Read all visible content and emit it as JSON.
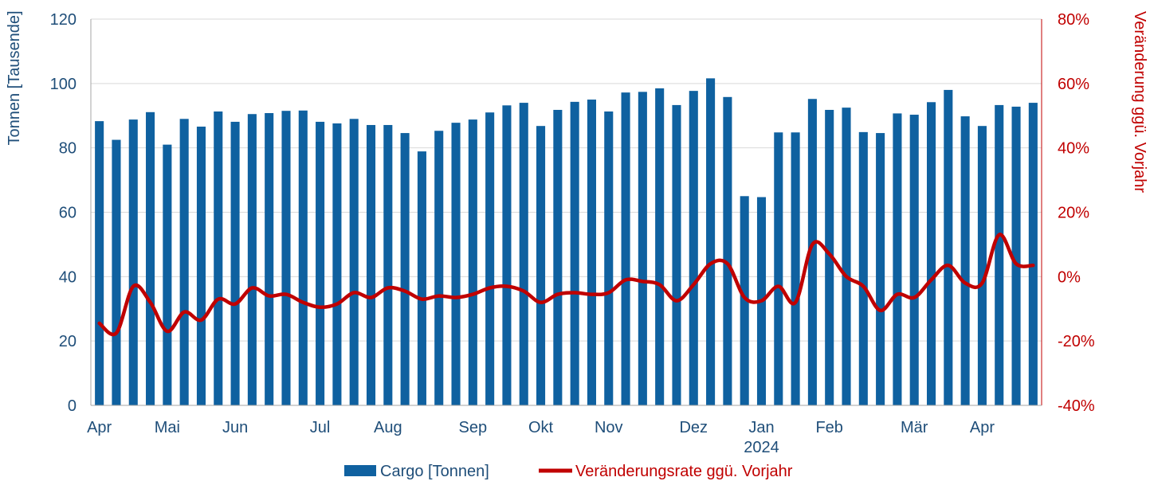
{
  "colors": {
    "bars": "#0F61A0",
    "line": "#C00000",
    "left_axis_text": "#1F4E79",
    "right_axis_text": "#C00000",
    "grid": "#D9D9D9"
  },
  "chart_data": {
    "type": "bar",
    "title": "",
    "ylabel": "Tonnen [Tausende]",
    "y2label": "Veränderung ggü. Vorjahr",
    "ylim": [
      0,
      120
    ],
    "y2lim": [
      -40,
      80
    ],
    "yticks": [
      "0",
      "20",
      "40",
      "60",
      "80",
      "100",
      "120"
    ],
    "y2ticks": [
      "-40%",
      "-20%",
      "0%",
      "20%",
      "40%",
      "60%",
      "80%"
    ],
    "grid": true,
    "legend_position": "bottom",
    "x_month_labels": [
      {
        "index": 0,
        "label": "Apr"
      },
      {
        "index": 4,
        "label": "Mai"
      },
      {
        "index": 8,
        "label": "Jun"
      },
      {
        "index": 13,
        "label": "Jul"
      },
      {
        "index": 17,
        "label": "Aug"
      },
      {
        "index": 22,
        "label": "Sep"
      },
      {
        "index": 26,
        "label": "Okt"
      },
      {
        "index": 30,
        "label": "Nov"
      },
      {
        "index": 35,
        "label": "Dez"
      },
      {
        "index": 39,
        "label": "Jan"
      },
      {
        "index": 43,
        "label": "Feb"
      },
      {
        "index": 48,
        "label": "Mär"
      },
      {
        "index": 52,
        "label": "Apr"
      }
    ],
    "year_label": {
      "index": 39,
      "label": "2024"
    },
    "series": [
      {
        "name": "Cargo [Tonnen]",
        "type": "bar",
        "axis": "left",
        "values": [
          88.3,
          82.5,
          88.8,
          91.1,
          81.0,
          89.0,
          86.6,
          91.3,
          88.1,
          90.5,
          90.8,
          91.5,
          91.6,
          88.1,
          87.6,
          89.0,
          87.1,
          87.1,
          84.6,
          78.9,
          85.3,
          87.8,
          88.8,
          91.0,
          93.2,
          94.0,
          86.8,
          91.8,
          94.3,
          95.0,
          91.3,
          97.2,
          97.4,
          98.5,
          93.3,
          97.7,
          101.6,
          95.8,
          65.0,
          64.7,
          84.8,
          84.8,
          95.2,
          91.8,
          92.5,
          84.9,
          84.6,
          90.7,
          90.3,
          94.2,
          98.0,
          89.8,
          86.8,
          93.3,
          92.8,
          94.0
        ]
      },
      {
        "name": "Veränderungsrate ggü. Vorjahr",
        "type": "line",
        "axis": "right",
        "values": [
          -14.5,
          -17.5,
          -3.0,
          -8.0,
          -17.0,
          -11.0,
          -13.5,
          -7.0,
          -8.5,
          -3.5,
          -6.0,
          -5.5,
          -8.0,
          -9.5,
          -8.5,
          -5.0,
          -6.5,
          -3.5,
          -4.5,
          -7.0,
          -6.0,
          -6.5,
          -5.5,
          -3.5,
          -3.0,
          -4.5,
          -8.0,
          -5.5,
          -5.0,
          -5.5,
          -5.0,
          -1.0,
          -1.5,
          -2.5,
          -7.5,
          -2.5,
          4.0,
          4.0,
          -6.5,
          -7.5,
          -3.0,
          -8.0,
          10.0,
          7.0,
          0.0,
          -3.0,
          -10.5,
          -5.5,
          -6.5,
          -1.0,
          3.5,
          -2.0,
          -2.0,
          13.0,
          4.0,
          3.5
        ]
      }
    ]
  }
}
